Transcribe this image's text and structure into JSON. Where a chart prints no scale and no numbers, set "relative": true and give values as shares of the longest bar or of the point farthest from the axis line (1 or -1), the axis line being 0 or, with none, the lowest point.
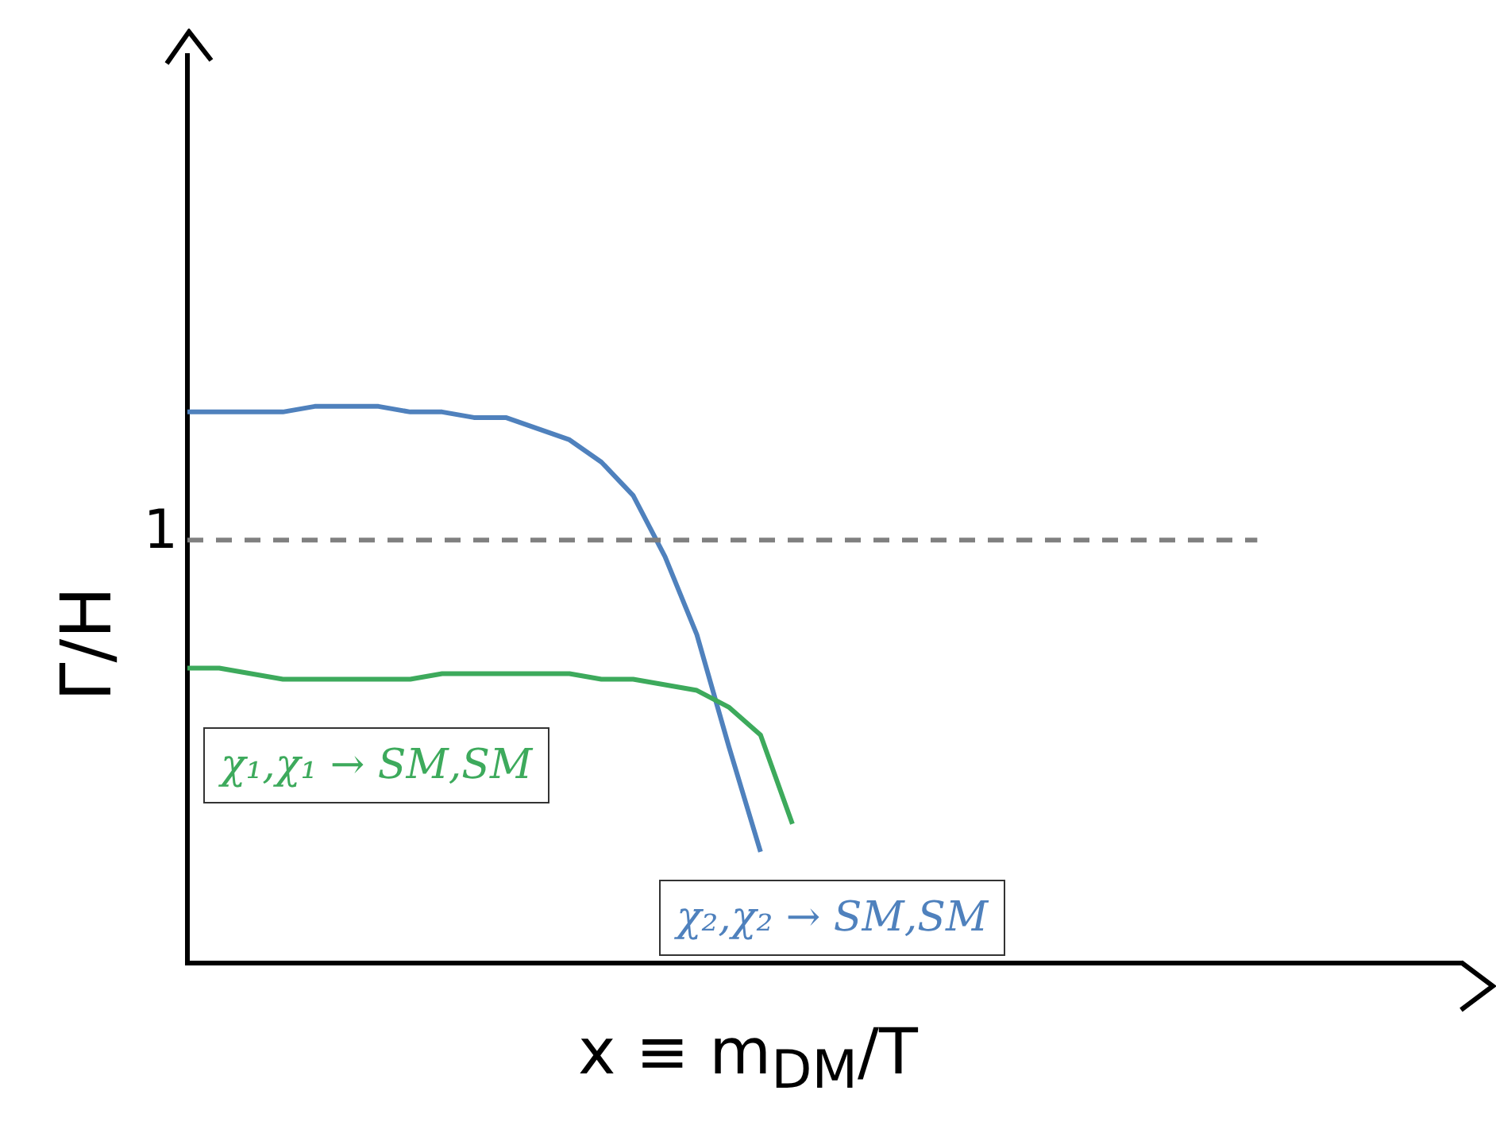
{
  "chart_data": {
    "type": "line",
    "relative": true,
    "xlabel": "x ≡ m$_{DM}$/T",
    "ylabel": "Γ/H",
    "categories": [
      null,
      null,
      null,
      null,
      null,
      null,
      null,
      null,
      null,
      null,
      null,
      null,
      null,
      null,
      null,
      null,
      null,
      null,
      null,
      null,
      null,
      null,
      null,
      null,
      null,
      null,
      null,
      null,
      null,
      null,
      null,
      null,
      null,
      null,
      null,
      null,
      null,
      null,
      null,
      null,
      null
    ],
    "series": [
      {
        "name": "χ₁,χ₁ → SM,SM",
        "color": "#3daa5c",
        "values": [
          0.53,
          0.53,
          0.52,
          0.51,
          0.51,
          0.51,
          0.51,
          0.51,
          0.52,
          0.52,
          0.52,
          0.52,
          0.52,
          0.51,
          0.51,
          0.5,
          0.49,
          0.46,
          0.41,
          0.25,
          null,
          null,
          null,
          null,
          null,
          null,
          null,
          null,
          null,
          null,
          null,
          null,
          null,
          null,
          null,
          null,
          null,
          null,
          null,
          null,
          null
        ]
      },
      {
        "name": "χ₂,χ₂ → SM,SM",
        "color": "#4f81bd",
        "values": [
          0.99,
          0.99,
          0.99,
          0.99,
          1.0,
          1.0,
          1.0,
          0.99,
          0.99,
          0.98,
          0.98,
          0.96,
          0.94,
          0.9,
          0.84,
          0.73,
          0.59,
          0.39,
          0.2,
          null,
          null,
          null,
          null,
          null,
          null,
          null,
          null,
          null,
          null,
          null,
          null,
          null,
          null,
          null,
          null,
          null,
          null,
          null,
          null,
          null,
          null
        ]
      }
    ],
    "ref_lines": [
      {
        "axis": "y",
        "value": 0.76,
        "label": "1",
        "color": "#808080",
        "line_style": "dashed"
      }
    ],
    "legend": false,
    "grid": false,
    "marker": "none",
    "line_style": "solid"
  }
}
